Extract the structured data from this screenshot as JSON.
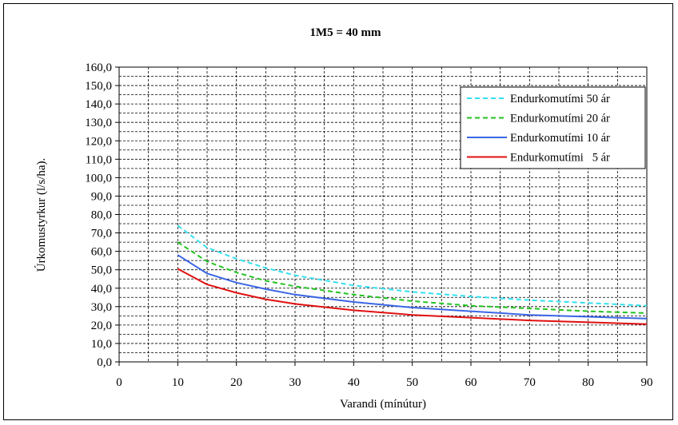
{
  "chart_data": {
    "type": "line",
    "title": "1M5 = 40 mm",
    "xlabel": "Varandi (mínútur)",
    "ylabel": "Úrkomustyrkur (l/s/ha).",
    "xlim": [
      0,
      90
    ],
    "ylim": [
      0,
      160
    ],
    "x_ticks": [
      "0",
      "10",
      "20",
      "30",
      "40",
      "50",
      "60",
      "70",
      "80",
      "90"
    ],
    "x_tick_values": [
      0,
      10,
      20,
      30,
      40,
      50,
      60,
      70,
      80,
      90
    ],
    "y_ticks": [
      "0,0",
      "10,0",
      "20,0",
      "30,0",
      "40,0",
      "50,0",
      "60,0",
      "70,0",
      "80,0",
      "90,0",
      "100,0",
      "110,0",
      "120,0",
      "130,0",
      "140,0",
      "150,0",
      "160,0"
    ],
    "y_tick_values": [
      0,
      10,
      20,
      30,
      40,
      50,
      60,
      70,
      80,
      90,
      100,
      110,
      120,
      130,
      140,
      150,
      160
    ],
    "grid": true,
    "legend_position": "top-right",
    "x": [
      10,
      15,
      20,
      25,
      30,
      40,
      50,
      60,
      70,
      80,
      90
    ],
    "series": [
      {
        "name": "Endurkomutími 50 ár",
        "color": "#33e0f0",
        "dash": "dashed",
        "values": [
          74,
          62,
          56,
          51,
          47,
          41.5,
          38,
          35.5,
          33.5,
          32,
          30.5
        ]
      },
      {
        "name": "Endurkomutími 20 ár",
        "color": "#22c322",
        "dash": "dashed",
        "values": [
          65,
          54.5,
          48.5,
          44,
          41,
          36.5,
          33,
          30.5,
          29,
          27.5,
          26.5
        ]
      },
      {
        "name": "Endurkomutími 10 ár",
        "color": "#3b66e6",
        "dash": "solid",
        "values": [
          58,
          48,
          43,
          39.5,
          36.5,
          32.5,
          29.5,
          27.5,
          25.5,
          24.5,
          23.5
        ]
      },
      {
        "name": "Endurkomutími   5 ár",
        "color": "#e01010",
        "dash": "solid",
        "values": [
          50.5,
          42,
          37.5,
          34,
          31.5,
          28,
          25.5,
          24,
          22.5,
          21.5,
          20.5
        ]
      }
    ]
  }
}
